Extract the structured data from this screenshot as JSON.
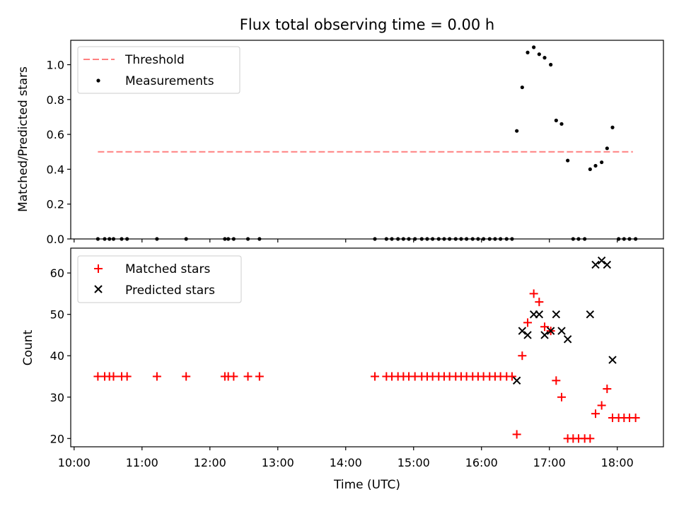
{
  "title": "Flux total observing time = 0.00 h",
  "colors": {
    "threshold": "#ff8080",
    "measurement": "#000000",
    "matched": "#ff0000",
    "predicted": "#000000"
  },
  "chart_data": [
    {
      "type": "scatter",
      "panel": "top",
      "ylabel": "Matched/Predicted stars",
      "xlim": [
        9.95,
        18.68
      ],
      "ylim": [
        0,
        1.14
      ],
      "yticks": [
        0.0,
        0.2,
        0.4,
        0.6,
        0.8,
        1.0
      ],
      "ytick_labels": [
        "0.0",
        "0.2",
        "0.4",
        "0.6",
        "0.8",
        "1.0"
      ],
      "threshold": {
        "name": "Threshold",
        "value": 0.5,
        "x_range": [
          10.35,
          18.23
        ]
      },
      "legend": [
        "Threshold",
        "Measurements"
      ],
      "series": [
        {
          "name": "Measurements",
          "x": [
            10.35,
            10.45,
            10.52,
            10.58,
            10.7,
            10.78,
            11.22,
            11.65,
            12.22,
            12.27,
            12.35,
            12.56,
            12.73,
            14.43,
            14.6,
            14.68,
            14.77,
            14.85,
            14.93,
            15.02,
            15.12,
            15.2,
            15.28,
            15.37,
            15.45,
            15.53,
            15.62,
            15.7,
            15.78,
            15.87,
            15.95,
            16.03,
            16.12,
            16.2,
            16.28,
            16.37,
            16.45,
            16.52,
            16.6,
            16.68,
            16.77,
            16.85,
            16.93,
            17.02,
            17.1,
            17.18,
            17.27,
            17.35,
            17.43,
            17.52,
            17.6,
            17.68,
            17.77,
            17.85,
            17.93,
            18.02,
            18.1,
            18.18,
            18.27
          ],
          "y": [
            0,
            0,
            0,
            0,
            0,
            0,
            0,
            0,
            0,
            0,
            0,
            0,
            0,
            0,
            0,
            0,
            0,
            0,
            0,
            0,
            0,
            0,
            0,
            0,
            0,
            0,
            0,
            0,
            0,
            0,
            0,
            0,
            0,
            0,
            0,
            0,
            0,
            0.62,
            0.87,
            1.07,
            1.1,
            1.06,
            1.04,
            1.0,
            0.68,
            0.66,
            0.45,
            0,
            0,
            0,
            0.4,
            0.42,
            0.44,
            0.52,
            0.64,
            0,
            0,
            0,
            0
          ]
        }
      ]
    },
    {
      "type": "scatter",
      "panel": "bottom",
      "ylabel": "Count",
      "xlabel": "Time (UTC)",
      "xlim": [
        9.95,
        18.68
      ],
      "ylim": [
        18,
        66
      ],
      "yticks": [
        20,
        30,
        40,
        50,
        60
      ],
      "ytick_labels": [
        "20",
        "30",
        "40",
        "50",
        "60"
      ],
      "xticks": [
        10,
        11,
        12,
        13,
        14,
        15,
        16,
        17,
        18
      ],
      "xtick_labels": [
        "10:00",
        "11:00",
        "12:00",
        "13:00",
        "14:00",
        "15:00",
        "16:00",
        "17:00",
        "18:00"
      ],
      "legend": [
        "Matched stars",
        "Predicted stars"
      ],
      "series": [
        {
          "name": "Matched stars",
          "marker": "+",
          "x": [
            10.35,
            10.45,
            10.52,
            10.58,
            10.7,
            10.78,
            11.22,
            11.65,
            12.22,
            12.27,
            12.35,
            12.56,
            12.73,
            14.43,
            14.6,
            14.68,
            14.77,
            14.85,
            14.93,
            15.02,
            15.12,
            15.2,
            15.28,
            15.37,
            15.45,
            15.53,
            15.62,
            15.7,
            15.78,
            15.87,
            15.95,
            16.03,
            16.12,
            16.2,
            16.28,
            16.37,
            16.45,
            16.52,
            16.6,
            16.68,
            16.77,
            16.85,
            16.93,
            17.02,
            17.1,
            17.18,
            17.27,
            17.35,
            17.43,
            17.52,
            17.6,
            17.68,
            17.77,
            17.85,
            17.93,
            18.02,
            18.1,
            18.18,
            18.27
          ],
          "y": [
            35,
            35,
            35,
            35,
            35,
            35,
            35,
            35,
            35,
            35,
            35,
            35,
            35,
            35,
            35,
            35,
            35,
            35,
            35,
            35,
            35,
            35,
            35,
            35,
            35,
            35,
            35,
            35,
            35,
            35,
            35,
            35,
            35,
            35,
            35,
            35,
            35,
            21,
            40,
            48,
            55,
            53,
            47,
            46,
            34,
            30,
            20,
            20,
            20,
            20,
            20,
            26,
            28,
            32,
            25,
            25,
            25,
            25,
            25
          ]
        },
        {
          "name": "Predicted stars",
          "marker": "x",
          "x": [
            16.52,
            16.6,
            16.68,
            16.77,
            16.85,
            16.93,
            17.02,
            17.1,
            17.18,
            17.27,
            17.6,
            17.68,
            17.77,
            17.85,
            17.93
          ],
          "y": [
            34,
            46,
            45,
            50,
            50,
            45,
            46,
            50,
            46,
            44,
            50,
            62,
            63,
            62,
            39
          ]
        }
      ]
    }
  ]
}
